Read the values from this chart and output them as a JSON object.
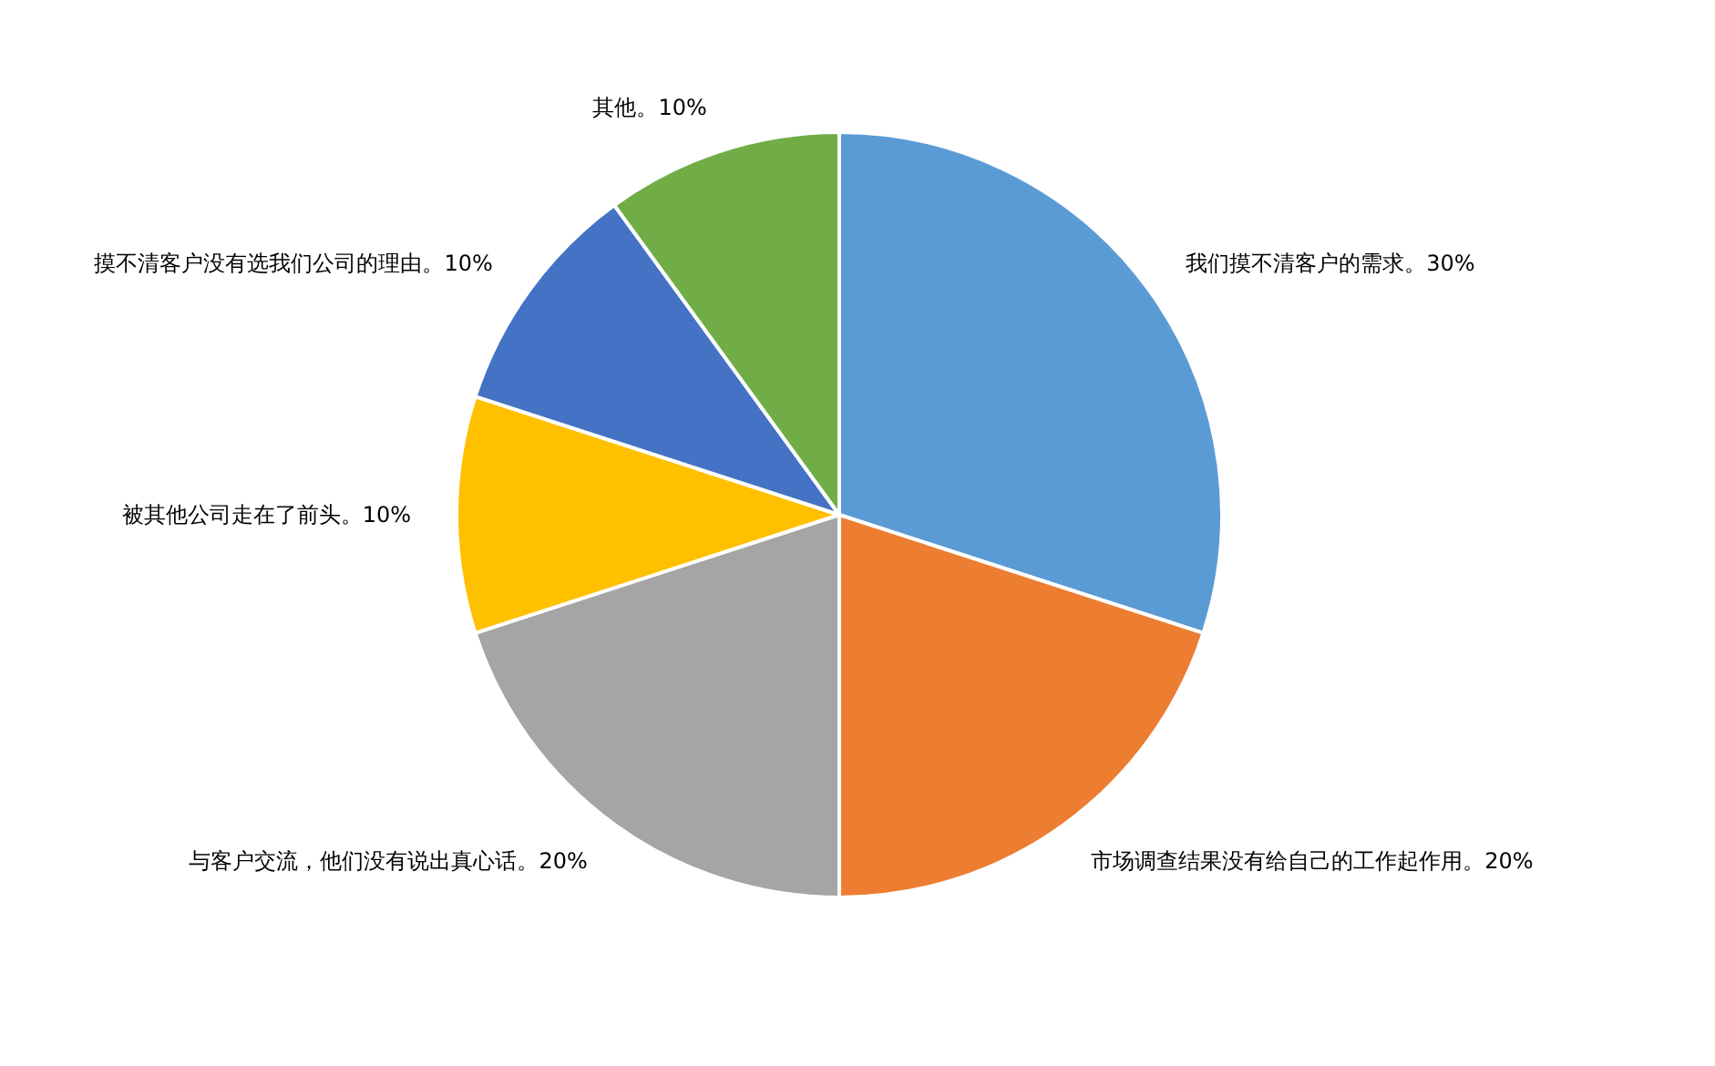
{
  "chart_data": {
    "type": "pie",
    "categories": [
      "我们摸不清客户的需求。",
      "市场调查结果没有给自己的工作起作用。",
      "与客户交流，他们没有说出真心话。",
      "被其他公司走在了前头。",
      "摸不清客户没有选我们公司的理由。",
      "其他。"
    ],
    "values": [
      30,
      20,
      20,
      10,
      10,
      10
    ],
    "colors": [
      "#5b9bd5",
      "#ed7d31",
      "#a5a5a5",
      "#ffc000",
      "#4472c4",
      "#70ad47"
    ],
    "value_labels": [
      "30%",
      "20%",
      "20%",
      "10%",
      "10%",
      "10%"
    ],
    "legend": false
  }
}
